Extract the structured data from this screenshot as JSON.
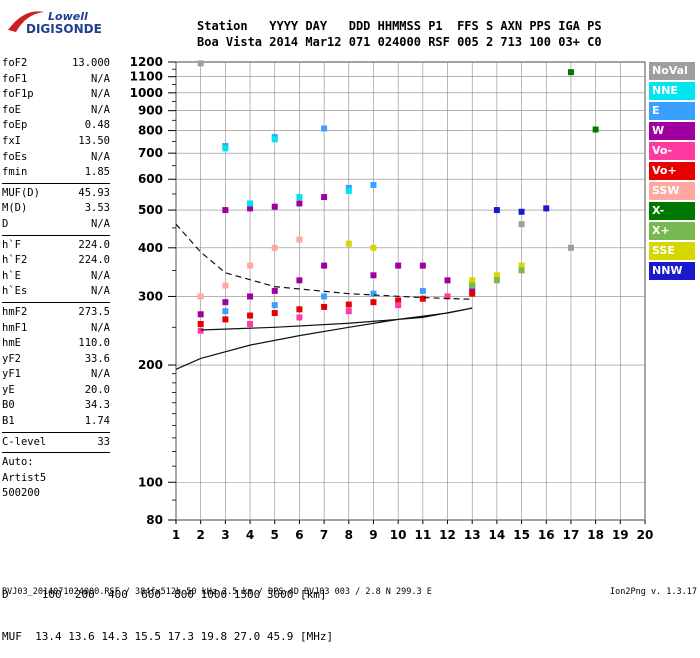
{
  "logo": {
    "line1": "Lowell",
    "line2": "DIGISONDE"
  },
  "header": {
    "labels": [
      "Station",
      "YYYY",
      "DAY",
      "DDD",
      "HHMMSS",
      "P1",
      "FFS",
      "S",
      "AXN",
      "PPS",
      "IGA",
      "PS"
    ],
    "values": [
      "Boa Vista",
      "2014",
      "Mar12",
      "071",
      "024000",
      "RSF",
      "005",
      "2",
      "713",
      "100",
      "03+",
      "C0"
    ]
  },
  "params": {
    "group1": [
      [
        "foF2",
        "13.000"
      ],
      [
        "foF1",
        "N/A"
      ],
      [
        "foF1p",
        "N/A"
      ],
      [
        "foE",
        "N/A"
      ],
      [
        "foEp",
        "0.48"
      ],
      [
        "fxI",
        "13.50"
      ],
      [
        "foEs",
        "N/A"
      ],
      [
        "fmin",
        "1.85"
      ]
    ],
    "group2": [
      [
        "MUF(D)",
        "45.93"
      ],
      [
        "M(D)",
        "3.53"
      ],
      [
        "D",
        "N/A"
      ]
    ],
    "group3": [
      [
        "h`F",
        "224.0"
      ],
      [
        "h`F2",
        "224.0"
      ],
      [
        "h`E",
        "N/A"
      ],
      [
        "h`Es",
        "N/A"
      ]
    ],
    "group4": [
      [
        "hmF2",
        "273.5"
      ],
      [
        "hmF1",
        "N/A"
      ],
      [
        "hmE",
        "110.0"
      ],
      [
        "yF2",
        "33.6"
      ],
      [
        "yF1",
        "N/A"
      ],
      [
        "yE",
        "20.0"
      ],
      [
        "B0",
        "34.3"
      ],
      [
        "B1",
        "1.74"
      ]
    ],
    "group5": [
      [
        "C-level",
        "33"
      ]
    ],
    "auto": [
      "Auto:",
      "Artist5",
      "500200"
    ]
  },
  "legend": [
    {
      "label": "NoVal",
      "color": "#9e9e9e"
    },
    {
      "label": "NNE",
      "color": "#00e5ee"
    },
    {
      "label": "E",
      "color": "#3aa0ff"
    },
    {
      "label": "W",
      "color": "#a000a0"
    },
    {
      "label": "Vo-",
      "color": "#ff3aa0"
    },
    {
      "label": "Vo+",
      "color": "#e60000"
    },
    {
      "label": "SSW",
      "color": "#ffa8a0"
    },
    {
      "label": "X-",
      "color": "#007800"
    },
    {
      "label": "X+",
      "color": "#78b850"
    },
    {
      "label": "SSE",
      "color": "#d6d600"
    },
    {
      "label": "NNW",
      "color": "#1a1acc"
    }
  ],
  "bottom": {
    "d_line": "D     100  200  400  600  800 1000 1500 3000 [km]",
    "muf_line": "MUF  13.4 13.6 14.3 15.5 17.3 19.8 27.0 45.9 [MHz]"
  },
  "footer": "BVJ03_2014071024000.RSF / 384fx512h 50 kHz 2.5 km / DPS-4D BVJ03 003 / 2.8 N 299.3 E",
  "version": "Ion2Png v. 1.3.17",
  "chart_data": {
    "type": "scatter",
    "title": "",
    "xlabel": "",
    "ylabel": "",
    "xlim": [
      1,
      20
    ],
    "ylim": [
      80,
      1200
    ],
    "x_ticks": [
      1,
      2,
      3,
      4,
      5,
      6,
      7,
      8,
      9,
      10,
      11,
      12,
      13,
      14,
      15,
      16,
      17,
      18,
      19,
      20
    ],
    "y_ticks": [
      80,
      100,
      200,
      300,
      400,
      500,
      600,
      700,
      800,
      900,
      1000,
      1100,
      1200
    ],
    "grid": true,
    "y_scale": "log",
    "series": [
      {
        "name": "W",
        "color": "#a000a0",
        "points": [
          [
            2,
            270
          ],
          [
            3,
            290
          ],
          [
            4,
            300
          ],
          [
            5,
            310
          ],
          [
            6,
            330
          ],
          [
            7,
            360
          ],
          [
            9,
            340
          ],
          [
            10,
            360
          ],
          [
            11,
            360
          ],
          [
            12,
            330
          ],
          [
            13,
            310
          ],
          [
            3,
            500
          ],
          [
            4,
            505
          ],
          [
            5,
            510
          ],
          [
            6,
            520
          ],
          [
            7,
            540
          ]
        ]
      },
      {
        "name": "Vo+",
        "color": "#e60000",
        "points": [
          [
            2,
            255
          ],
          [
            3,
            262
          ],
          [
            4,
            268
          ],
          [
            5,
            272
          ],
          [
            6,
            278
          ],
          [
            7,
            282
          ],
          [
            8,
            286
          ],
          [
            9,
            290
          ],
          [
            10,
            293
          ],
          [
            11,
            296
          ],
          [
            12,
            300
          ],
          [
            13,
            305
          ]
        ]
      },
      {
        "name": "Vo-",
        "color": "#ff3aa0",
        "points": [
          [
            2,
            245
          ],
          [
            4,
            255
          ],
          [
            6,
            265
          ],
          [
            8,
            275
          ],
          [
            10,
            285
          ],
          [
            12,
            300
          ]
        ]
      },
      {
        "name": "E",
        "color": "#3aa0ff",
        "points": [
          [
            3,
            275
          ],
          [
            5,
            285
          ],
          [
            7,
            300
          ],
          [
            9,
            305
          ],
          [
            11,
            310
          ],
          [
            13,
            320
          ],
          [
            3,
            730
          ],
          [
            5,
            770
          ],
          [
            7,
            810
          ],
          [
            8,
            570
          ],
          [
            9,
            580
          ]
        ]
      },
      {
        "name": "NNE",
        "color": "#00e5ee",
        "points": [
          [
            4,
            520
          ],
          [
            6,
            540
          ],
          [
            8,
            560
          ],
          [
            3,
            720
          ],
          [
            5,
            760
          ]
        ]
      },
      {
        "name": "SSE",
        "color": "#d6d600",
        "points": [
          [
            8,
            410
          ],
          [
            9,
            400
          ],
          [
            13,
            330
          ],
          [
            14,
            340
          ],
          [
            15,
            360
          ]
        ]
      },
      {
        "name": "SSW",
        "color": "#ffa8a0",
        "points": [
          [
            2,
            300
          ],
          [
            3,
            320
          ],
          [
            4,
            360
          ],
          [
            5,
            400
          ],
          [
            6,
            420
          ]
        ]
      },
      {
        "name": "NNW",
        "color": "#1a1acc",
        "points": [
          [
            14,
            500
          ],
          [
            15,
            495
          ],
          [
            16,
            505
          ]
        ]
      },
      {
        "name": "X+",
        "color": "#78b850",
        "points": [
          [
            13,
            320
          ],
          [
            14,
            330
          ],
          [
            15,
            350
          ]
        ]
      },
      {
        "name": "X-",
        "color": "#007800",
        "points": [
          [
            17,
            1130
          ],
          [
            18,
            805
          ]
        ]
      },
      {
        "name": "NoVal",
        "color": "#9e9e9e",
        "points": [
          [
            2,
            1190
          ],
          [
            15,
            460
          ],
          [
            17,
            400
          ]
        ]
      }
    ],
    "profile_curve": [
      [
        1,
        195
      ],
      [
        2,
        208
      ],
      [
        4,
        225
      ],
      [
        6,
        238
      ],
      [
        8,
        250
      ],
      [
        10,
        262
      ],
      [
        12,
        272
      ],
      [
        13,
        280
      ],
      [
        11,
        265
      ],
      [
        8,
        256
      ],
      [
        5,
        250
      ],
      [
        2,
        246
      ]
    ],
    "dashed_curve": [
      [
        1,
        460
      ],
      [
        2,
        390
      ],
      [
        3,
        345
      ],
      [
        5,
        318
      ],
      [
        8,
        305
      ],
      [
        11,
        298
      ],
      [
        13,
        295
      ]
    ]
  }
}
